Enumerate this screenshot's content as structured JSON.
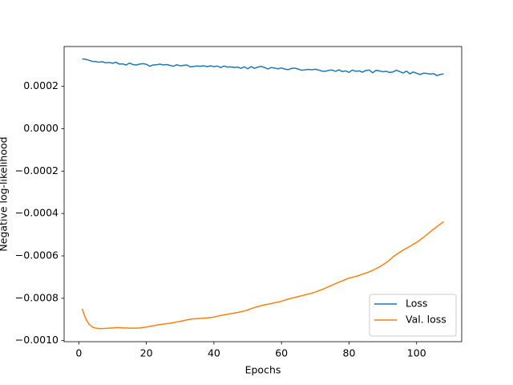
{
  "chart_data": {
    "type": "line",
    "xlabel": "Epochs",
    "ylabel": "Negative log-likelihood",
    "x": [
      1,
      2,
      3,
      4,
      5,
      6,
      7,
      8,
      9,
      10,
      11,
      12,
      13,
      14,
      15,
      16,
      17,
      18,
      19,
      20,
      21,
      22,
      23,
      24,
      25,
      26,
      27,
      28,
      29,
      30,
      31,
      32,
      33,
      34,
      35,
      36,
      37,
      38,
      39,
      40,
      41,
      42,
      43,
      44,
      45,
      46,
      47,
      48,
      49,
      50,
      51,
      52,
      53,
      54,
      55,
      56,
      57,
      58,
      59,
      60,
      61,
      62,
      63,
      64,
      65,
      66,
      67,
      68,
      69,
      70,
      71,
      72,
      73,
      74,
      75,
      76,
      77,
      78,
      79,
      80,
      81,
      82,
      83,
      84,
      85,
      86,
      87,
      88,
      89,
      90,
      91,
      92,
      93,
      94,
      95,
      96,
      97,
      98,
      99,
      100,
      101,
      102,
      103,
      104,
      105,
      106,
      107,
      108
    ],
    "series": [
      {
        "name": "Loss",
        "color": "#1f77b4",
        "values": [
          0.00033,
          0.000328,
          0.000323,
          0.000318,
          0.000317,
          0.000314,
          0.000316,
          0.000311,
          0.000313,
          0.000309,
          0.000314,
          0.000305,
          0.000306,
          0.000301,
          0.00031,
          0.000303,
          0.000301,
          0.000305,
          0.000307,
          0.000304,
          0.000295,
          0.000301,
          0.000302,
          0.000305,
          0.000301,
          0.000303,
          0.000299,
          0.000295,
          0.000302,
          0.000297,
          0.000299,
          0.000301,
          0.000292,
          0.000294,
          0.000296,
          0.000295,
          0.000297,
          0.000293,
          0.000297,
          0.000293,
          0.000296,
          0.000289,
          0.000296,
          0.000291,
          0.000292,
          0.000289,
          0.000291,
          0.000285,
          0.000292,
          0.000283,
          0.000293,
          0.000285,
          0.000291,
          0.000294,
          0.000289,
          0.000282,
          0.000289,
          0.000286,
          0.000283,
          0.000287,
          0.000281,
          0.000279,
          0.000285,
          0.000286,
          0.000281,
          0.000276,
          0.000278,
          0.00028,
          0.000278,
          0.000281,
          0.000277,
          0.000272,
          0.000271,
          0.000276,
          0.000277,
          0.000271,
          0.000278,
          0.00027,
          0.000273,
          0.000266,
          0.000277,
          0.000271,
          0.000273,
          0.000267,
          0.000275,
          0.000277,
          0.000264,
          0.000276,
          0.000273,
          0.000269,
          0.000271,
          0.000266,
          0.000268,
          0.000276,
          0.00027,
          0.000263,
          0.000272,
          0.000259,
          0.000268,
          0.000262,
          0.000256,
          0.000262,
          0.000261,
          0.000258,
          0.00026,
          0.000251,
          0.000256,
          0.000259
        ]
      },
      {
        "name": "Val. loss",
        "color": "#ff7f0e",
        "values": [
          -0.00085,
          -0.000895,
          -0.000922,
          -0.000936,
          -0.000941,
          -0.000943,
          -0.000943,
          -0.000942,
          -0.000941,
          -0.00094,
          -0.000939,
          -0.000939,
          -0.00094,
          -0.00094,
          -0.000941,
          -0.000941,
          -0.000941,
          -0.00094,
          -0.000938,
          -0.000936,
          -0.000933,
          -0.00093,
          -0.000927,
          -0.000924,
          -0.000922,
          -0.00092,
          -0.000918,
          -0.000915,
          -0.000912,
          -0.000909,
          -0.000906,
          -0.000902,
          -0.000899,
          -0.000897,
          -0.000896,
          -0.000895,
          -0.000894,
          -0.000893,
          -0.000891,
          -0.000889,
          -0.000885,
          -0.000881,
          -0.000878,
          -0.000876,
          -0.000873,
          -0.00087,
          -0.000867,
          -0.000864,
          -0.00086,
          -0.000855,
          -0.000849,
          -0.000844,
          -0.000839,
          -0.000835,
          -0.000831,
          -0.000828,
          -0.000825,
          -0.000821,
          -0.000818,
          -0.000814,
          -0.000809,
          -0.000804,
          -0.0008,
          -0.000796,
          -0.000792,
          -0.000788,
          -0.000784,
          -0.00078,
          -0.000776,
          -0.000771,
          -0.000765,
          -0.000759,
          -0.000752,
          -0.000745,
          -0.000738,
          -0.000731,
          -0.000724,
          -0.000718,
          -0.000711,
          -0.000705,
          -0.000701,
          -0.000697,
          -0.000692,
          -0.000686,
          -0.000681,
          -0.000675,
          -0.000668,
          -0.00066,
          -0.000652,
          -0.000642,
          -0.000632,
          -0.000619,
          -0.000605,
          -0.000594,
          -0.000583,
          -0.000573,
          -0.000564,
          -0.000555,
          -0.000546,
          -0.000536,
          -0.000525,
          -0.000513,
          -0.0005,
          -0.000487,
          -0.000474,
          -0.000462,
          -0.00045,
          -0.000439
        ]
      }
    ],
    "xlim": [
      -4.35,
      113.35
    ],
    "ylim": [
      -0.001005,
      0.000388
    ],
    "xticks": [
      0,
      20,
      40,
      60,
      80,
      100
    ],
    "yticks": [
      {
        "value": -0.001,
        "label": "−0.0010"
      },
      {
        "value": -0.0008,
        "label": "−0.0008"
      },
      {
        "value": -0.0006,
        "label": "−0.0006"
      },
      {
        "value": -0.0004,
        "label": "−0.0004"
      },
      {
        "value": -0.0002,
        "label": "−0.0002"
      },
      {
        "value": 0,
        "label": "0.0000"
      },
      0.0002
    ],
    "legend": "lower right",
    "grid": false
  }
}
